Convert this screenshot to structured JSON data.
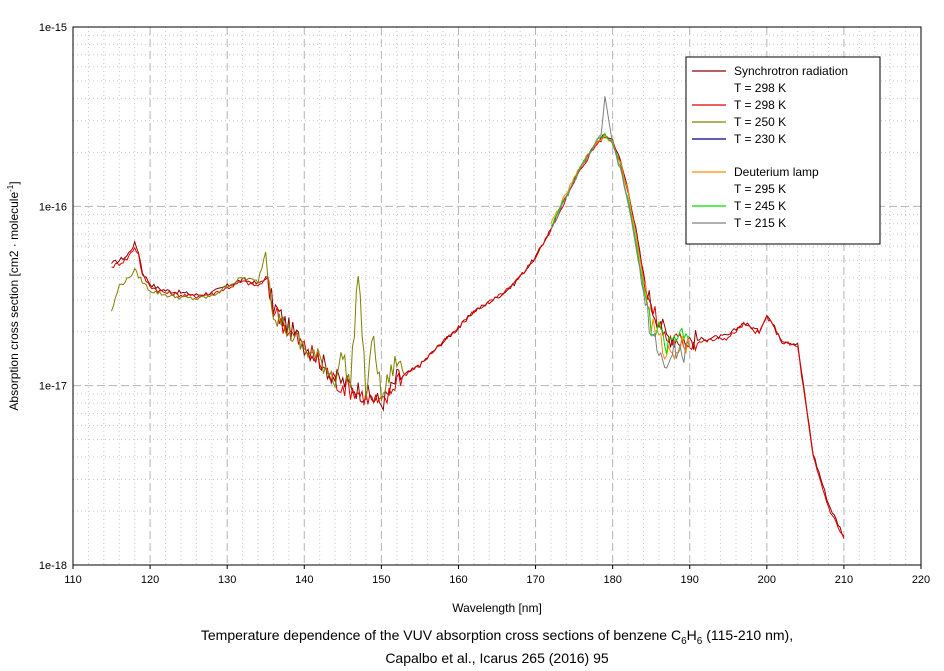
{
  "chart_data": {
    "type": "line",
    "title": "",
    "xlabel": "Wavelength [nm]",
    "ylabel": "Absorption cross section [cm2 · molecule",
    "ylabel_sup": "-1",
    "ylabel_close": "]",
    "xlim": [
      110,
      220
    ],
    "ylim": [
      1e-18,
      1e-15
    ],
    "yscale": "log",
    "grid": true,
    "legend_position": "top-right",
    "x_ticks": [
      110,
      120,
      130,
      140,
      150,
      160,
      170,
      180,
      190,
      200,
      210,
      220
    ],
    "x_tick_labels": [
      "110",
      "120",
      "130",
      "140",
      "150",
      "160",
      "170",
      "180",
      "190",
      "200",
      "210",
      "220"
    ],
    "y_ticks": [
      1e-18,
      1e-17,
      1e-16,
      1e-15
    ],
    "y_tick_labels": [
      "1e-18",
      "1e-17",
      "1e-16",
      "1e-15"
    ],
    "legend": {
      "group1_title": "Synchrotron radiation",
      "group2_title": "Deuterium lamp"
    },
    "series": [
      {
        "name": "T = 298 K",
        "group": "synchrotron",
        "color": "#8b0000",
        "x": [
          115,
          116,
          117,
          118,
          118.5,
          119,
          120,
          121,
          122,
          124,
          126,
          128,
          130,
          132,
          134,
          135,
          136,
          138,
          140,
          142,
          144,
          146,
          148,
          150,
          151,
          152,
          153,
          155,
          157,
          160,
          162,
          165,
          167,
          170,
          172,
          174,
          176,
          178,
          179,
          180,
          181,
          182,
          183,
          184,
          185,
          187,
          189,
          191,
          193,
          195,
          197,
          199,
          200,
          202,
          204,
          206,
          208,
          210
        ],
        "y": [
          4.8e-17,
          5e-17,
          5.3e-17,
          6.2e-17,
          5.6e-17,
          4.3e-17,
          3.7e-17,
          3.5e-17,
          3.4e-17,
          3.3e-17,
          3.2e-17,
          3.3e-17,
          3.6e-17,
          3.9e-17,
          3.7e-17,
          4e-17,
          2.8e-17,
          2.1e-17,
          1.7e-17,
          1.4e-17,
          1.1e-17,
          1e-17,
          9e-18,
          8e-18,
          9e-18,
          1.1e-17,
          1.15e-17,
          1.3e-17,
          1.6e-17,
          2.1e-17,
          2.6e-17,
          3.1e-17,
          3.6e-17,
          5.2e-17,
          7.5e-17,
          1.15e-16,
          1.7e-16,
          2.3e-16,
          2.5e-16,
          2.35e-16,
          1.8e-16,
          1.25e-16,
          7.5e-17,
          4.2e-17,
          2.8e-17,
          1.9e-17,
          1.8e-17,
          1.8e-17,
          1.85e-17,
          1.9e-17,
          2.25e-17,
          2e-17,
          2.5e-17,
          1.8e-17,
          1.7e-17,
          4.2e-18,
          2.2e-18,
          1.45e-18
        ]
      },
      {
        "name": "T = 298 K",
        "group": "synchrotron",
        "color": "#e00000",
        "x": [
          115,
          116,
          117,
          118,
          118.5,
          119,
          120,
          121,
          122,
          124,
          126,
          128,
          130,
          132,
          134,
          135,
          136,
          138,
          140,
          142,
          144,
          146,
          148,
          150,
          151,
          152,
          153,
          155,
          157,
          160,
          162,
          165,
          167,
          170,
          172,
          174,
          176,
          178,
          179,
          180,
          181,
          182,
          183,
          184,
          185,
          187,
          189,
          191,
          193,
          195,
          197,
          199,
          200,
          202,
          204,
          206,
          208,
          210
        ],
        "y": [
          4.6e-17,
          4.8e-17,
          5.1e-17,
          5.9e-17,
          5.4e-17,
          4.1e-17,
          3.6e-17,
          3.4e-17,
          3.3e-17,
          3.2e-17,
          3.15e-17,
          3.25e-17,
          3.5e-17,
          3.8e-17,
          3.6e-17,
          3.9e-17,
          2.7e-17,
          2e-17,
          1.65e-17,
          1.35e-17,
          1.05e-17,
          9.6e-18,
          8.7e-18,
          7.8e-18,
          8.8e-18,
          1.1e-17,
          1.15e-17,
          1.3e-17,
          1.6e-17,
          2.1e-17,
          2.6e-17,
          3.1e-17,
          3.6e-17,
          5.2e-17,
          7.4e-17,
          1.12e-16,
          1.65e-16,
          2.25e-16,
          2.45e-16,
          2.3e-16,
          1.75e-16,
          1.2e-16,
          7.2e-17,
          4e-17,
          2.7e-17,
          1.85e-17,
          1.75e-17,
          1.75e-17,
          1.8e-17,
          1.85e-17,
          2.2e-17,
          1.95e-17,
          2.45e-17,
          1.75e-17,
          1.65e-17,
          4e-18,
          2.1e-18,
          1.4e-18
        ]
      },
      {
        "name": "T = 250 K",
        "group": "synchrotron",
        "color": "#808000",
        "x": [
          115,
          116,
          117,
          118,
          119,
          120,
          121,
          122,
          124,
          126,
          128,
          130,
          132,
          134,
          135,
          136,
          138,
          140,
          142,
          144,
          145,
          146,
          147,
          148,
          149,
          150,
          151,
          152,
          153
        ],
        "y": [
          2.6e-17,
          3.6e-17,
          3.9e-17,
          4.4e-17,
          3.8e-17,
          3.4e-17,
          3.3e-17,
          3.2e-17,
          3.1e-17,
          3.05e-17,
          3.15e-17,
          3.6e-17,
          4e-17,
          3.8e-17,
          5.6e-17,
          2.6e-17,
          2e-17,
          1.6e-17,
          1.4e-17,
          1.1e-17,
          1.5e-17,
          1e-17,
          4.5e-17,
          9e-18,
          1.9e-17,
          8.5e-18,
          1.1e-17,
          1.4e-17,
          1.15e-17
        ]
      },
      {
        "name": "T = 230 K",
        "group": "synchrotron",
        "color": "#000080",
        "x": [],
        "y": []
      },
      {
        "name": "T = 295 K",
        "group": "deuterium",
        "color": "#ff8c00",
        "x": [
          172,
          174,
          176,
          178,
          179,
          180,
          181,
          182,
          183,
          184,
          185,
          186,
          187,
          188,
          189,
          190
        ],
        "y": [
          8e-17,
          1.18e-16,
          1.72e-16,
          2.3e-16,
          2.45e-16,
          2.3e-16,
          1.75e-16,
          1.2e-16,
          7e-17,
          3.9e-17,
          2.2e-17,
          1.8e-17,
          1.5e-17,
          1.6e-17,
          1.7e-17,
          1.75e-17
        ]
      },
      {
        "name": "T = 245 K",
        "group": "deuterium",
        "color": "#00dd00",
        "x": [
          172,
          174,
          176,
          178,
          179,
          180,
          181,
          182,
          183,
          184,
          185,
          186,
          187,
          188,
          189,
          190
        ],
        "y": [
          7.8e-17,
          1.15e-16,
          1.7e-16,
          2.35e-16,
          2.5e-16,
          2.25e-16,
          1.65e-16,
          1.1e-16,
          6.5e-17,
          3.5e-17,
          2.1e-17,
          2e-17,
          1.7e-17,
          1.9e-17,
          2e-17,
          1.95e-17
        ]
      },
      {
        "name": "T = 215 K",
        "group": "deuterium",
        "color": "#808080",
        "x": [
          172,
          174,
          176,
          178,
          178.5,
          179,
          180,
          181,
          182,
          183,
          184,
          185,
          186,
          187,
          188,
          189,
          190
        ],
        "y": [
          7.5e-17,
          1.12e-16,
          1.68e-16,
          2.3e-16,
          2.55e-16,
          4e-16,
          2.2e-16,
          1.6e-16,
          1.05e-16,
          6e-17,
          3.3e-17,
          2e-17,
          1.6e-17,
          1.2e-17,
          1.6e-17,
          1.5e-17,
          1.6e-17
        ]
      }
    ]
  },
  "caption": {
    "line1_before": "Temperature dependence of the VUV absorption cross sections of benzene C",
    "sub1": "6",
    "mid": "H",
    "sub2": "6",
    "line1_after": " (115-210 nm),",
    "line2": "Capalbo et al., Icarus 265 (2016) 95"
  }
}
